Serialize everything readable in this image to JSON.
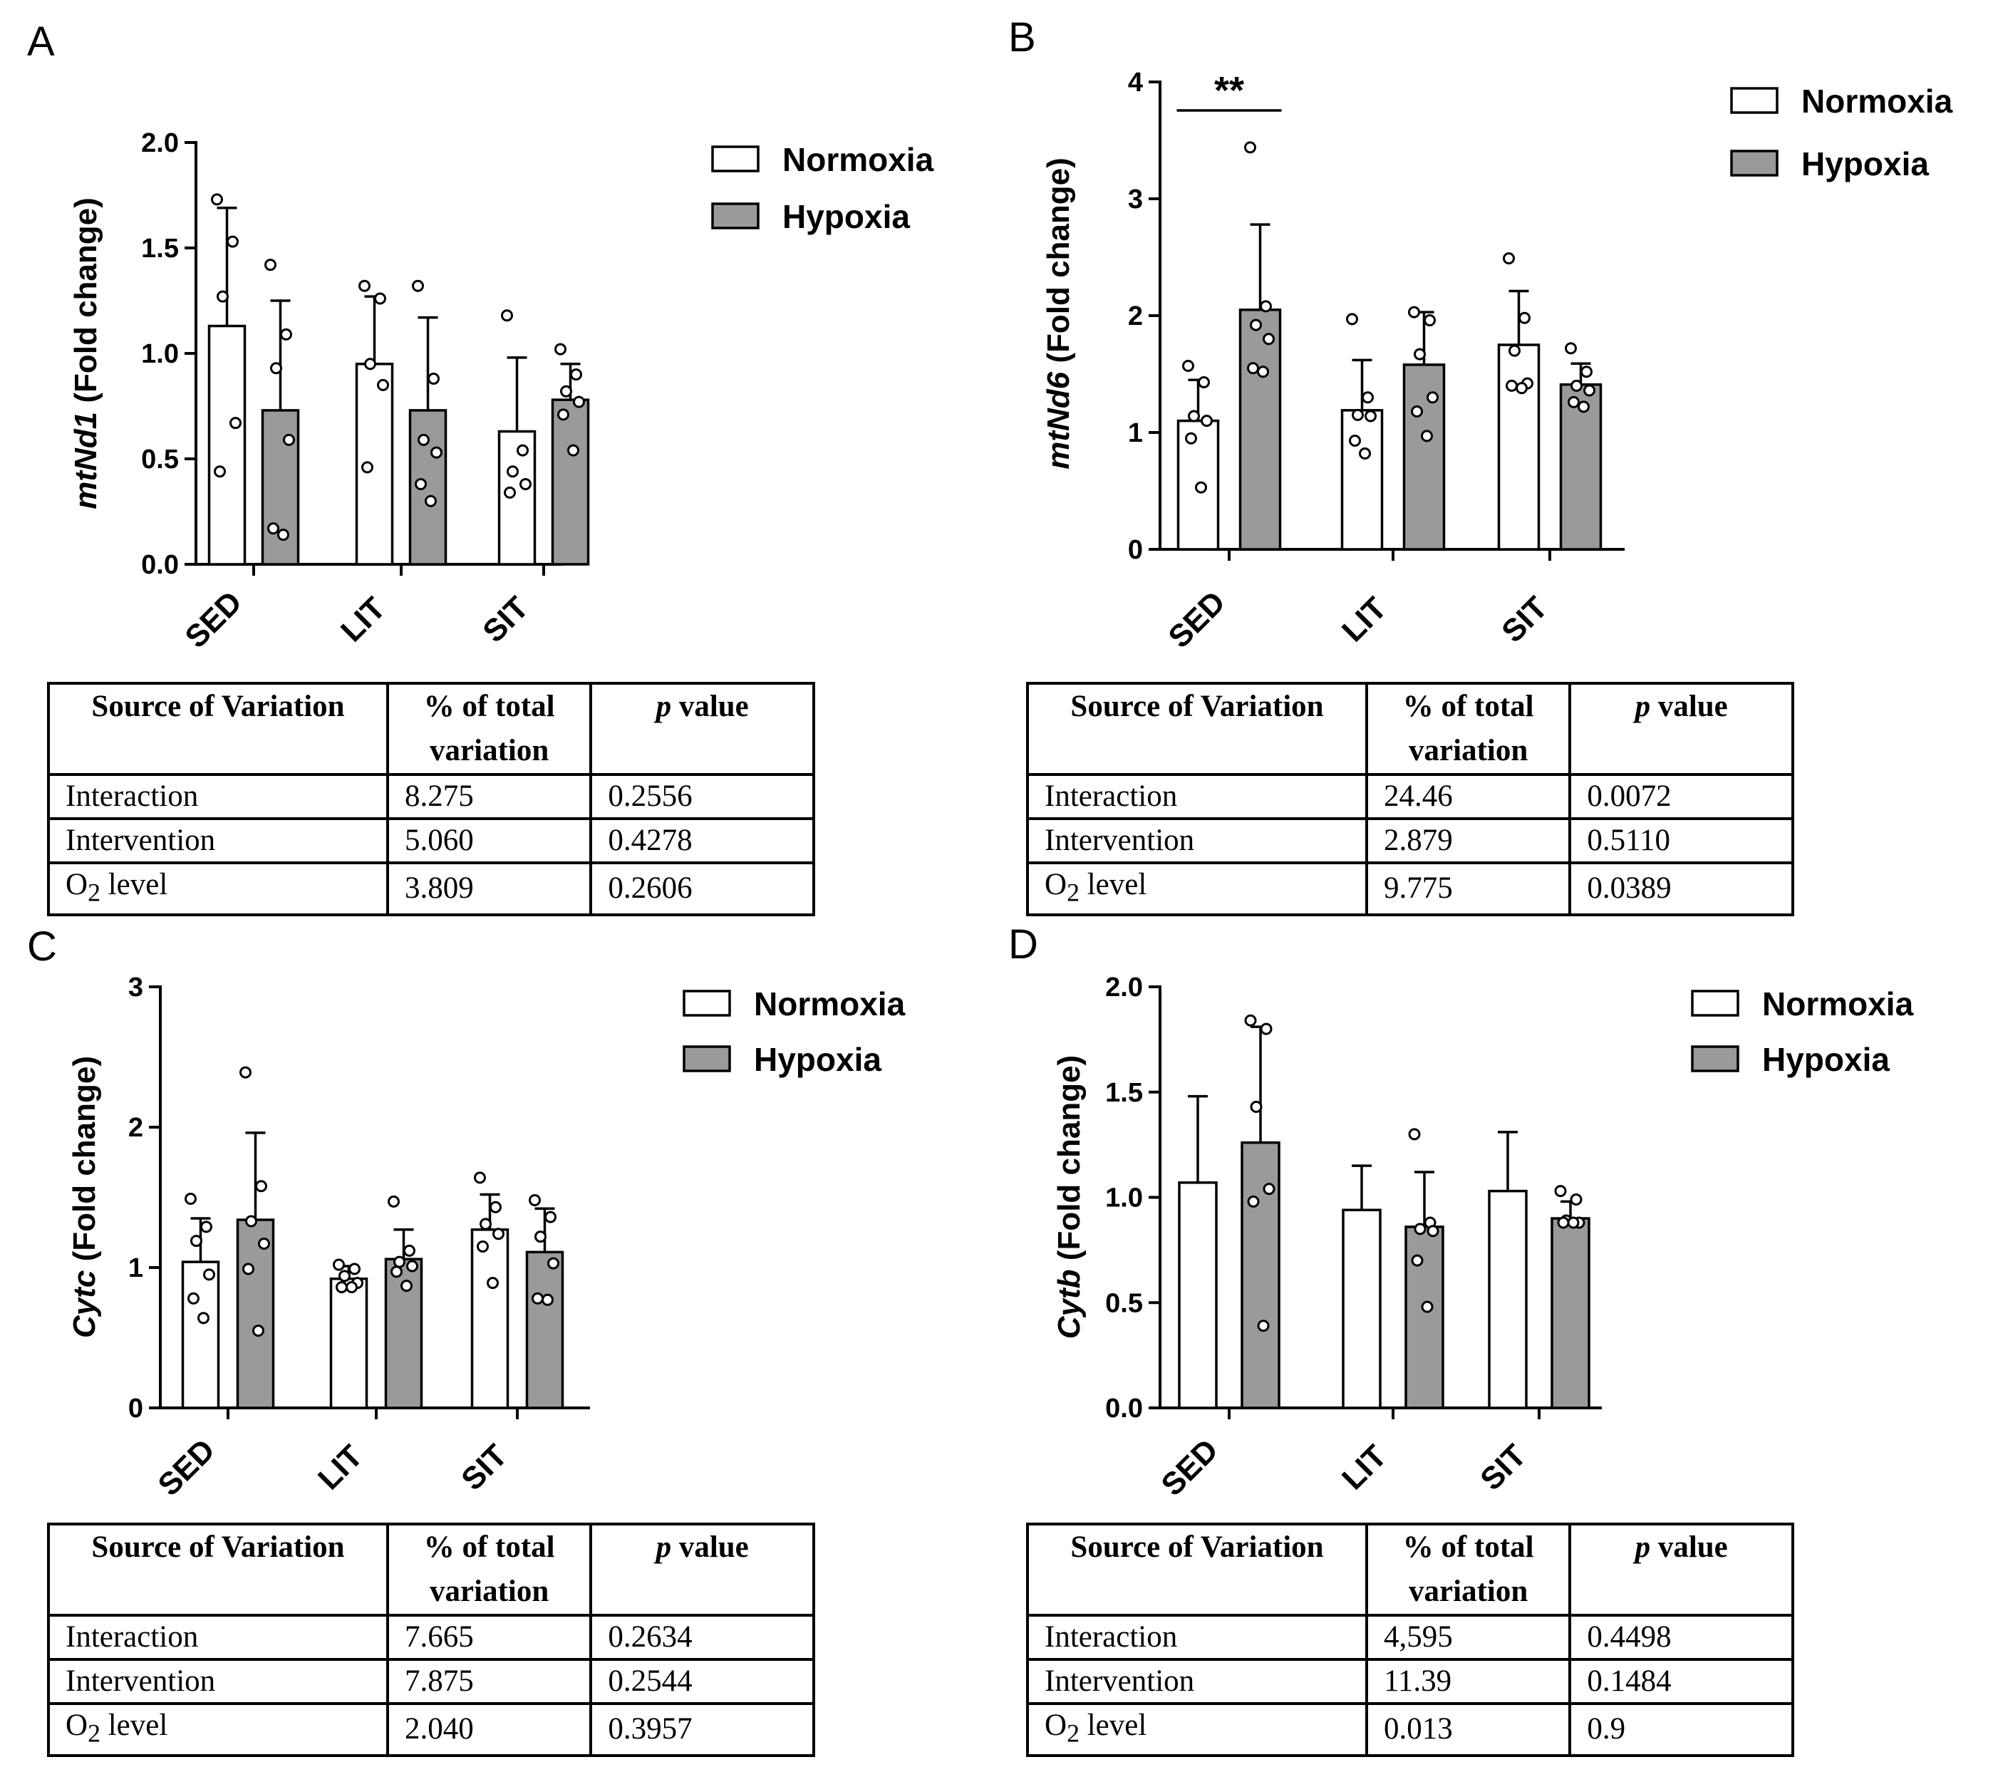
{
  "legend": {
    "normoxia": "Normoxia",
    "hypoxia": "Hypoxia"
  },
  "colors": {
    "normoxia": "#ffffff",
    "hypoxia": "#9a9a9a"
  },
  "table_headers": {
    "source": "Source of Variation",
    "pct": "% of total variation",
    "p_italic": "p",
    "p_rest": " value"
  },
  "chart_data": [
    {
      "panel": "A",
      "type": "bar",
      "ylabel_gene": "mtNd1",
      "ylabel_rest": " (Fold change)",
      "categories": [
        "SED",
        "LIT",
        "SIT"
      ],
      "ylim": [
        0,
        2.0
      ],
      "yticks": [
        "0.0",
        "0.5",
        "1.0",
        "1.5",
        "2.0"
      ],
      "ytick_values": [
        0,
        0.5,
        1.0,
        1.5,
        2.0
      ],
      "significance": null,
      "series": [
        {
          "name": "Normoxia",
          "values": [
            1.13,
            0.95,
            0.63
          ],
          "sd": [
            0.56,
            0.32,
            0.35
          ],
          "points": [
            [
              1.73,
              1.53,
              1.27,
              0.67,
              0.44
            ],
            [
              1.32,
              1.26,
              0.95,
              0.85,
              0.46
            ],
            [
              1.18,
              0.54,
              0.44,
              0.38,
              0.34
            ]
          ]
        },
        {
          "name": "Hypoxia",
          "values": [
            0.73,
            0.73,
            0.78
          ],
          "sd": [
            0.52,
            0.44,
            0.17
          ],
          "points": [
            [
              1.42,
              1.09,
              0.93,
              0.59,
              0.17,
              0.14
            ],
            [
              1.32,
              0.88,
              0.59,
              0.53,
              0.38,
              0.3
            ],
            [
              1.02,
              0.9,
              0.82,
              0.77,
              0.71,
              0.54
            ]
          ]
        }
      ],
      "table": [
        {
          "source": "Interaction",
          "source_sub": "",
          "source_tail": "",
          "pct": "8.275",
          "p": "0.2556"
        },
        {
          "source": "Intervention",
          "source_sub": "",
          "source_tail": "",
          "pct": "5.060",
          "p": "0.4278"
        },
        {
          "source": "O",
          "source_sub": "2",
          "source_tail": " level",
          "pct": "3.809",
          "p": "0.2606"
        }
      ]
    },
    {
      "panel": "B",
      "type": "bar",
      "ylabel_gene": "mtNd6",
      "ylabel_rest": " (Fold change)",
      "categories": [
        "SED",
        "LIT",
        "SIT"
      ],
      "ylim": [
        0,
        4
      ],
      "yticks": [
        "0",
        "1",
        "2",
        "3",
        "4"
      ],
      "ytick_values": [
        0,
        1,
        2,
        3,
        4
      ],
      "significance": {
        "label": "**",
        "category": "SED"
      },
      "series": [
        {
          "name": "Normoxia",
          "values": [
            1.1,
            1.19,
            1.75
          ],
          "sd": [
            0.35,
            0.43,
            0.46
          ],
          "points": [
            [
              1.57,
              1.43,
              1.14,
              1.1,
              0.95,
              0.53
            ],
            [
              1.97,
              1.3,
              1.15,
              1.14,
              0.93,
              0.82
            ],
            [
              2.49,
              1.98,
              1.7,
              1.42,
              1.4,
              1.38
            ]
          ]
        },
        {
          "name": "Hypoxia",
          "values": [
            2.05,
            1.58,
            1.41
          ],
          "sd": [
            0.73,
            0.45,
            0.18
          ],
          "points": [
            [
              3.44,
              2.08,
              1.92,
              1.8,
              1.55,
              1.52
            ],
            [
              2.03,
              1.96,
              1.67,
              1.3,
              1.18,
              0.97
            ],
            [
              1.72,
              1.52,
              1.4,
              1.36,
              1.26,
              1.22
            ]
          ]
        }
      ],
      "table": [
        {
          "source": "Interaction",
          "source_sub": "",
          "source_tail": "",
          "pct": "24.46",
          "p": "0.0072"
        },
        {
          "source": "Intervention",
          "source_sub": "",
          "source_tail": "",
          "pct": "2.879",
          "p": "0.5110"
        },
        {
          "source": "O",
          "source_sub": "2",
          "source_tail": " level",
          "pct": "9.775",
          "p": "0.0389"
        }
      ]
    },
    {
      "panel": "C",
      "type": "bar",
      "ylabel_gene": "Cytc",
      "ylabel_rest": " (Fold change)",
      "categories": [
        "SED",
        "LIT",
        "SIT"
      ],
      "ylim": [
        0,
        3
      ],
      "yticks": [
        "0",
        "1",
        "2",
        "3"
      ],
      "ytick_values": [
        0,
        1,
        2,
        3
      ],
      "significance": null,
      "series": [
        {
          "name": "Normoxia",
          "values": [
            1.04,
            0.92,
            1.27
          ],
          "sd": [
            0.31,
            0.09,
            0.25
          ],
          "points": [
            [
              1.49,
              1.29,
              1.19,
              0.95,
              0.78,
              0.64
            ],
            [
              1.02,
              0.99,
              0.94,
              0.89,
              0.86,
              0.86
            ],
            [
              1.64,
              1.43,
              1.31,
              1.24,
              1.15,
              0.89
            ]
          ]
        },
        {
          "name": "Hypoxia",
          "values": [
            1.34,
            1.06,
            1.11
          ],
          "sd": [
            0.62,
            0.21,
            0.31
          ],
          "points": [
            [
              2.39,
              1.58,
              1.33,
              1.17,
              0.99,
              0.55
            ],
            [
              1.47,
              1.12,
              1.04,
              1.01,
              0.97,
              0.87
            ],
            [
              1.48,
              1.36,
              1.22,
              1.03,
              0.78,
              0.77
            ]
          ]
        }
      ],
      "table": [
        {
          "source": "Interaction",
          "source_sub": "",
          "source_tail": "",
          "pct": "7.665",
          "p": "0.2634"
        },
        {
          "source": "Intervention",
          "source_sub": "",
          "source_tail": "",
          "pct": "7.875",
          "p": "0.2544"
        },
        {
          "source": "O",
          "source_sub": "2",
          "source_tail": " level",
          "pct": "2.040",
          "p": "0.3957"
        }
      ]
    },
    {
      "panel": "D",
      "type": "bar",
      "ylabel_gene": "Cytb",
      "ylabel_rest": " (Fold change)",
      "categories": [
        "SED",
        "LIT",
        "SIT"
      ],
      "ylim": [
        0,
        2.0
      ],
      "yticks": [
        "0.0",
        "0.5",
        "1.0",
        "1.5",
        "2.0"
      ],
      "ytick_values": [
        0,
        0.5,
        1.0,
        1.5,
        2.0
      ],
      "significance": null,
      "series": [
        {
          "name": "Normoxia",
          "values": [
            1.07,
            0.94,
            1.03
          ],
          "sd": [
            0.41,
            0.21,
            0.28
          ],
          "points": [
            [],
            [],
            []
          ]
        },
        {
          "name": "Hypoxia",
          "values": [
            1.26,
            0.86,
            0.9
          ],
          "sd": [
            0.55,
            0.26,
            0.08
          ],
          "points": [
            [
              1.84,
              1.8,
              1.43,
              1.04,
              0.98,
              0.39
            ],
            [
              1.3,
              0.88,
              0.85,
              0.84,
              0.7,
              0.48
            ],
            [
              1.03,
              0.99,
              0.89,
              0.88,
              0.88,
              0.88
            ]
          ]
        }
      ],
      "table": [
        {
          "source": "Interaction",
          "source_sub": "",
          "source_tail": "",
          "pct": "4,595",
          "p": "0.4498"
        },
        {
          "source": "Intervention",
          "source_sub": "",
          "source_tail": "",
          "pct": "11.39",
          "p": "0.1484"
        },
        {
          "source": "O",
          "source_sub": "2",
          "source_tail": " level",
          "pct": "0.013",
          "p": "0.9"
        }
      ]
    }
  ]
}
